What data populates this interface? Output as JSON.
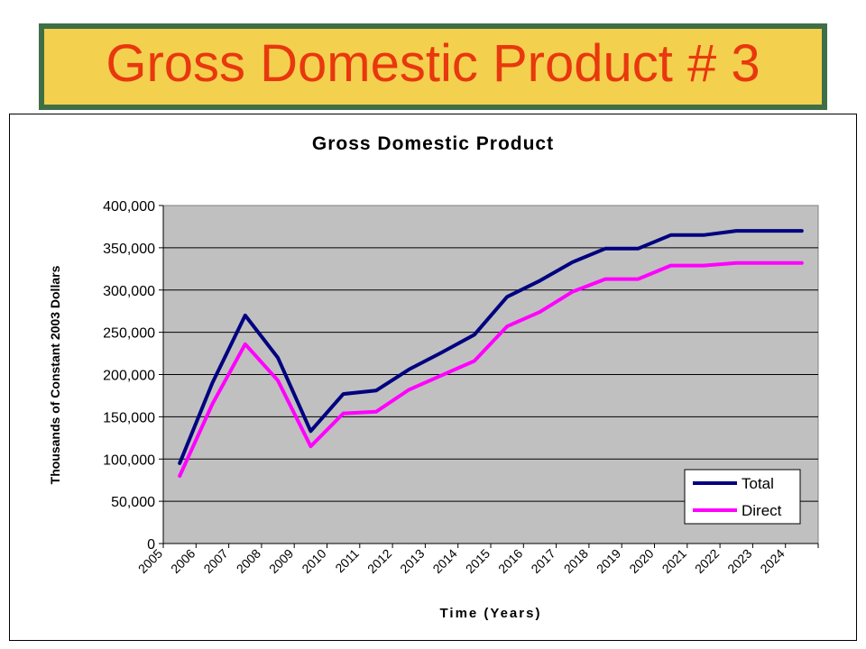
{
  "slide": {
    "title": "Gross Domestic Product # 3",
    "title_color": "#e8380d",
    "banner_fill": "#f4d04f",
    "banner_border": "#3f6f46"
  },
  "chart_data": {
    "type": "line",
    "title": "Gross Domestic Product",
    "xlabel": "Time (Years)",
    "ylabel": "Thousands of Constant 2003 Dollars",
    "categories": [
      "2005",
      "2006",
      "2007",
      "2008",
      "2009",
      "2010",
      "2011",
      "2012",
      "2013",
      "2014",
      "2015",
      "2016",
      "2017",
      "2018",
      "2019",
      "2020",
      "2021",
      "2022",
      "2023",
      "2024"
    ],
    "y_ticks": [
      "0",
      "50,000",
      "100,000",
      "150,000",
      "200,000",
      "250,000",
      "300,000",
      "350,000",
      "400,000"
    ],
    "ylim": [
      0,
      400000
    ],
    "grid": true,
    "plot_background": "#c0c0c0",
    "legend_position": "bottom-right",
    "series": [
      {
        "name": "Total",
        "color": "#000080",
        "values": [
          95000,
          190000,
          270000,
          220000,
          133000,
          177000,
          181000,
          206000,
          226000,
          247000,
          292000,
          311000,
          333000,
          349000,
          349000,
          365000,
          365000,
          370000,
          370000,
          370000
        ]
      },
      {
        "name": "Direct",
        "color": "#ff00ff",
        "values": [
          80000,
          165000,
          236000,
          193000,
          115000,
          154000,
          156000,
          182000,
          199000,
          216000,
          257000,
          274000,
          298000,
          313000,
          313000,
          329000,
          329000,
          332000,
          332000,
          332000
        ]
      }
    ]
  }
}
